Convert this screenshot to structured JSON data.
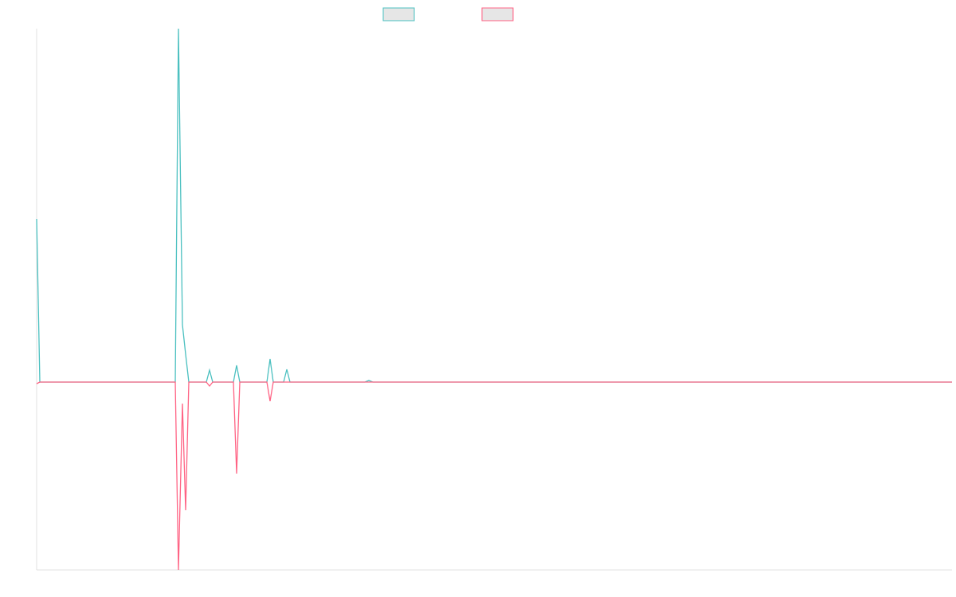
{
  "chart_data": {
    "type": "line",
    "x": [
      0,
      4,
      174,
      178,
      183,
      187,
      191,
      213,
      217,
      221,
      247,
      251,
      255,
      289,
      293,
      297,
      310,
      314,
      318,
      412,
      417,
      422,
      1149
    ],
    "series": [
      {
        "color": "#4bc0c0",
        "values": [
          2.05,
          0,
          0,
          4.44,
          0.72,
          0.35,
          0,
          0,
          0.15,
          0,
          0,
          0.21,
          0,
          0,
          0.29,
          0,
          0,
          0.16,
          0,
          0,
          0.02,
          0,
          0
        ]
      },
      {
        "color": "#ff6384",
        "values": [
          -0.02,
          0,
          0,
          -2.36,
          -0.27,
          -1.61,
          0,
          0,
          -0.05,
          0,
          0,
          -1.15,
          0,
          0,
          -0.24,
          0,
          0,
          0,
          0,
          0,
          0,
          0,
          0
        ]
      }
    ],
    "xlim": [
      0,
      1149
    ],
    "ylim": [
      -2.36,
      4.44
    ],
    "legend": "top"
  }
}
